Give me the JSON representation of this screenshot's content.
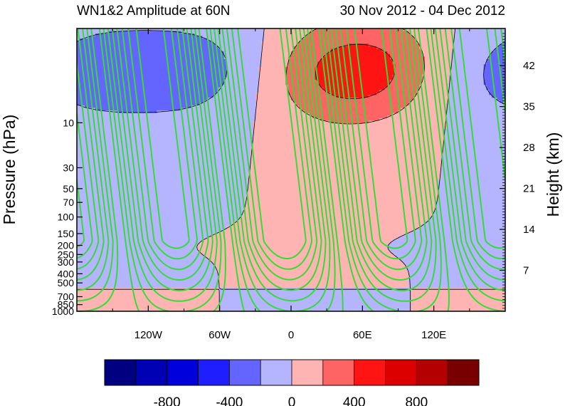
{
  "chart_data": {
    "type": "contour",
    "title_left": "WN1&2 Amplitude at 60N",
    "title_right": "30 Nov 2012 - 04 Dec 2012",
    "ylabel_left": "Pressure (hPa)",
    "ylabel_right": "Height (km)",
    "x_ticks": [
      {
        "lon": -120,
        "label": "120W"
      },
      {
        "lon": -60,
        "label": "60W"
      },
      {
        "lon": 0,
        "label": "0"
      },
      {
        "lon": 60,
        "label": "60E"
      },
      {
        "lon": 120,
        "label": "120E"
      }
    ],
    "xlim": [
      -180,
      180
    ],
    "ylim_hPa": [
      1000,
      1
    ],
    "yscale": "log",
    "p_ticks": [
      {
        "p": 10,
        "label": "10"
      },
      {
        "p": 30,
        "label": "30"
      },
      {
        "p": 50,
        "label": "50"
      },
      {
        "p": 70,
        "label": "70"
      },
      {
        "p": 100,
        "label": "100"
      },
      {
        "p": 150,
        "label": "150"
      },
      {
        "p": 200,
        "label": "200"
      },
      {
        "p": 250,
        "label": "250"
      },
      {
        "p": 300,
        "label": "300"
      },
      {
        "p": 400,
        "label": "400"
      },
      {
        "p": 500,
        "label": "500"
      },
      {
        "p": 700,
        "label": "700"
      },
      {
        "p": 850,
        "label": "850"
      },
      {
        "p": 1000,
        "label": "1000"
      }
    ],
    "height_ticks": [
      {
        "km": 7,
        "label": "7"
      },
      {
        "km": 14,
        "label": "14"
      },
      {
        "km": 21,
        "label": "21"
      },
      {
        "km": 28,
        "label": "28"
      },
      {
        "km": 35,
        "label": "35"
      },
      {
        "km": 42,
        "label": "42"
      }
    ],
    "colorbar": {
      "levels": [
        -1000,
        -800,
        -600,
        -400,
        -200,
        0,
        200,
        400,
        600,
        800,
        1000
      ],
      "labels": [
        {
          "value": -800,
          "label": "-800"
        },
        {
          "value": -400,
          "label": "-400"
        },
        {
          "value": 0,
          "label": "0"
        },
        {
          "value": 400,
          "label": "400"
        },
        {
          "value": 800,
          "label": "800"
        }
      ],
      "colors": [
        "#000080",
        "#0000b4",
        "#0000dc",
        "#1e1eff",
        "#6464ff",
        "#b4b4ff",
        "#ffb4b4",
        "#ff6464",
        "#ff1414",
        "#dc0000",
        "#b40000",
        "#780000"
      ]
    },
    "overlay_contours": {
      "color": "#33dd33",
      "positive_style": "solid",
      "negative_style": "dashed"
    }
  }
}
